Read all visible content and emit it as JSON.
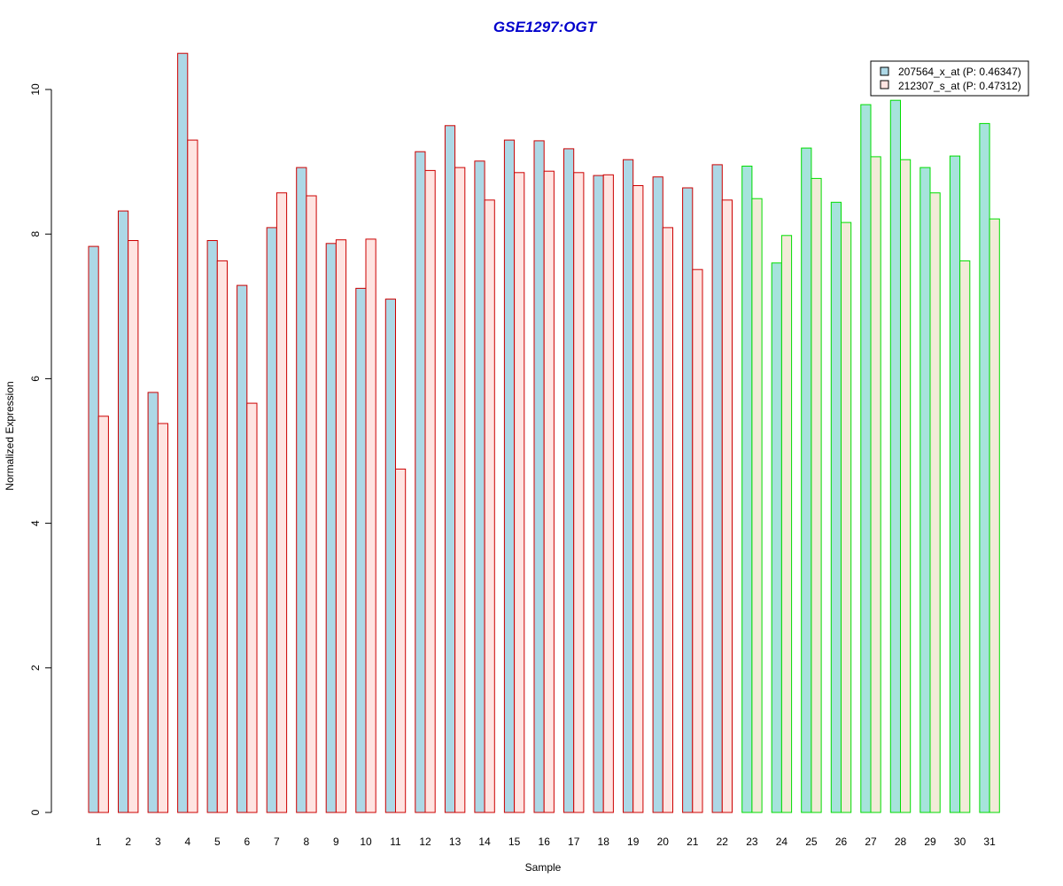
{
  "colors": {
    "title": "#0000CC",
    "series1_fill": "#ADD8E6",
    "series2_fill": "#FFE4E1",
    "group1_border": "#CC0000",
    "group2_border": "#00DD00",
    "group2_series1_fill": "#A6E3DC",
    "group2_series2_fill": "#F2EBD8"
  },
  "chart_data": {
    "type": "bar",
    "title": "GSE1297:OGT",
    "xlabel": "Sample",
    "ylabel": "Normalized Expression",
    "ylim": [
      0,
      10.5
    ],
    "yticks": [
      0,
      2,
      4,
      6,
      8,
      10
    ],
    "grid": false,
    "legend_position": "top-right",
    "categories": [
      "1",
      "2",
      "3",
      "4",
      "5",
      "6",
      "7",
      "8",
      "9",
      "10",
      "11",
      "12",
      "13",
      "14",
      "15",
      "16",
      "17",
      "18",
      "19",
      "20",
      "21",
      "22",
      "23",
      "24",
      "25",
      "26",
      "27",
      "28",
      "29",
      "30",
      "31"
    ],
    "groups": [
      {
        "border": "red",
        "samples": [
          "1",
          "2",
          "3",
          "4",
          "5",
          "6",
          "7",
          "8",
          "9",
          "10",
          "11",
          "12",
          "13",
          "14",
          "15",
          "16",
          "17",
          "18",
          "19",
          "20",
          "21",
          "22"
        ]
      },
      {
        "border": "green",
        "samples": [
          "23",
          "24",
          "25",
          "26",
          "27",
          "28",
          "29",
          "30",
          "31"
        ]
      }
    ],
    "series": [
      {
        "name": "207564_x_at (P: 0.46347)",
        "values": [
          7.83,
          8.32,
          5.81,
          10.5,
          7.91,
          7.29,
          8.09,
          8.92,
          7.87,
          7.25,
          7.1,
          9.14,
          9.5,
          9.01,
          9.3,
          9.29,
          9.18,
          8.81,
          9.03,
          8.79,
          8.64,
          8.96,
          8.94,
          7.6,
          9.19,
          8.44,
          9.79,
          9.85,
          8.92,
          9.08,
          9.53
        ]
      },
      {
        "name": "212307_s_at (P: 0.47312)",
        "values": [
          5.48,
          7.91,
          5.38,
          9.3,
          7.63,
          5.66,
          8.57,
          8.53,
          7.92,
          7.93,
          4.75,
          8.88,
          8.92,
          8.47,
          8.85,
          8.87,
          8.85,
          8.82,
          8.67,
          8.09,
          7.51,
          8.47,
          8.49,
          7.98,
          8.77,
          8.16,
          9.07,
          9.03,
          8.57,
          7.63,
          8.21
        ]
      }
    ]
  }
}
